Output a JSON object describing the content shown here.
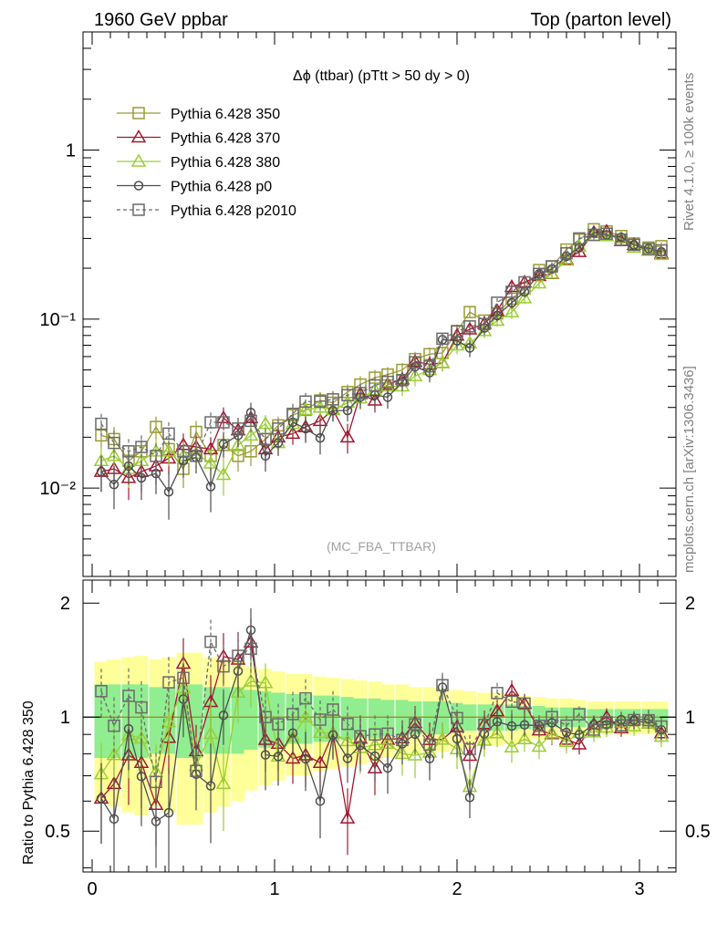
{
  "header": {
    "left_title": "1960 GeV ppbar",
    "right_title": "Top (parton level)"
  },
  "side_text": {
    "rivet": "Rivet 4.1.0, ≥ 100k events",
    "mcplots": "mcplots.cern.ch [arXiv:1306.3436]"
  },
  "chart_data": {
    "type": "line",
    "title": "Δϕ (ttbar) (pTtt > 50 dy > 0)",
    "analysis_label": "(MC_FBA_TTBAR)",
    "xlabel": "",
    "ylabel": "",
    "ratio_ylabel": "Ratio to Pythia 6.428 350",
    "xlim": [
      -0.05,
      3.2
    ],
    "ylim": [
      0.003,
      5
    ],
    "yscale": "log",
    "ratio_ylim": [
      0.39,
      2.3
    ],
    "x_ticks": [
      "0",
      "1",
      "2",
      "3"
    ],
    "y_ticks": [
      "1",
      "10⁻¹",
      "10⁻²"
    ],
    "ratio_y_ticks": [
      "2",
      "1",
      "0.5"
    ],
    "x": [
      0.05,
      0.12,
      0.2,
      0.27,
      0.35,
      0.42,
      0.5,
      0.57,
      0.65,
      0.72,
      0.8,
      0.87,
      0.95,
      1.02,
      1.1,
      1.17,
      1.25,
      1.32,
      1.4,
      1.47,
      1.55,
      1.62,
      1.7,
      1.77,
      1.85,
      1.92,
      2.0,
      2.07,
      2.15,
      2.22,
      2.3,
      2.37,
      2.45,
      2.52,
      2.6,
      2.67,
      2.75,
      2.82,
      2.9,
      2.97,
      3.05,
      3.12
    ],
    "series": [
      {
        "name": "Pythia 6.428 350",
        "color": "#9b9b34",
        "marker": "square",
        "dashed": false,
        "values": [
          0.0205,
          0.0195,
          0.0145,
          0.0165,
          0.023,
          0.017,
          0.013,
          0.0215,
          0.0155,
          0.018,
          0.0155,
          0.0165,
          0.0195,
          0.0235,
          0.027,
          0.029,
          0.033,
          0.032,
          0.037,
          0.041,
          0.045,
          0.047,
          0.05,
          0.058,
          0.062,
          0.063,
          0.085,
          0.11,
          0.098,
          0.108,
          0.132,
          0.152,
          0.195,
          0.205,
          0.258,
          0.295,
          0.34,
          0.33,
          0.31,
          0.28,
          0.265,
          0.27
        ],
        "errors": [
          0.0035,
          0.0035,
          0.003,
          0.003,
          0.0035,
          0.003,
          0.003,
          0.0035,
          0.003,
          0.003,
          0.003,
          0.003,
          0.003,
          0.003,
          0.004,
          0.004,
          0.004,
          0.004,
          0.004,
          0.005,
          0.005,
          0.005,
          0.005,
          0.006,
          0.006,
          0.006,
          0.008,
          0.008,
          0.008,
          0.008,
          0.01,
          0.01,
          0.012,
          0.012,
          0.015,
          0.015,
          0.018,
          0.018,
          0.015,
          0.015,
          0.015,
          0.015
        ]
      },
      {
        "name": "Pythia 6.428 370",
        "color": "#a01830",
        "marker": "triangle",
        "dashed": false,
        "values": [
          0.0125,
          0.013,
          0.0115,
          0.0125,
          0.0135,
          0.015,
          0.018,
          0.0175,
          0.017,
          0.026,
          0.022,
          0.026,
          0.017,
          0.02,
          0.021,
          0.023,
          0.025,
          0.029,
          0.02,
          0.036,
          0.033,
          0.041,
          0.044,
          0.056,
          0.054,
          0.055,
          0.08,
          0.087,
          0.094,
          0.112,
          0.155,
          0.165,
          0.18,
          0.185,
          0.225,
          0.25,
          0.325,
          0.33,
          0.29,
          0.275,
          0.255,
          0.245
        ],
        "errors": [
          0.003,
          0.003,
          0.003,
          0.003,
          0.003,
          0.003,
          0.003,
          0.003,
          0.003,
          0.004,
          0.004,
          0.004,
          0.003,
          0.003,
          0.003,
          0.004,
          0.004,
          0.004,
          0.004,
          0.005,
          0.005,
          0.005,
          0.005,
          0.006,
          0.006,
          0.006,
          0.008,
          0.008,
          0.008,
          0.008,
          0.01,
          0.01,
          0.012,
          0.012,
          0.015,
          0.015,
          0.018,
          0.018,
          0.015,
          0.015,
          0.015,
          0.015
        ]
      },
      {
        "name": "Pythia 6.428 380",
        "color": "#9acd32",
        "marker": "triangle",
        "dashed": false,
        "values": [
          0.0145,
          0.0155,
          0.013,
          0.0145,
          0.0165,
          0.0165,
          0.0155,
          0.016,
          0.014,
          0.012,
          0.018,
          0.0205,
          0.024,
          0.0185,
          0.024,
          0.029,
          0.03,
          0.029,
          0.032,
          0.034,
          0.038,
          0.04,
          0.04,
          0.046,
          0.05,
          0.055,
          0.07,
          0.072,
          0.085,
          0.098,
          0.11,
          0.133,
          0.163,
          0.186,
          0.222,
          0.268,
          0.31,
          0.31,
          0.3,
          0.265,
          0.255,
          0.24
        ],
        "errors": [
          0.003,
          0.003,
          0.003,
          0.003,
          0.003,
          0.003,
          0.003,
          0.003,
          0.003,
          0.003,
          0.003,
          0.003,
          0.003,
          0.003,
          0.003,
          0.004,
          0.004,
          0.004,
          0.004,
          0.005,
          0.005,
          0.005,
          0.005,
          0.006,
          0.006,
          0.006,
          0.008,
          0.008,
          0.008,
          0.008,
          0.01,
          0.01,
          0.012,
          0.012,
          0.015,
          0.015,
          0.018,
          0.018,
          0.015,
          0.015,
          0.015,
          0.015
        ]
      },
      {
        "name": "Pythia 6.428 p0",
        "color": "#4d4d4d",
        "marker": "circle",
        "dashed": false,
        "values": [
          0.0125,
          0.0105,
          0.0135,
          0.0115,
          0.0122,
          0.0095,
          0.0145,
          0.0152,
          0.0102,
          0.0182,
          0.0205,
          0.028,
          0.0155,
          0.0185,
          0.0245,
          0.0225,
          0.0198,
          0.0287,
          0.0288,
          0.0345,
          0.0355,
          0.0345,
          0.0425,
          0.0523,
          0.0482,
          0.0755,
          0.0745,
          0.0675,
          0.0885,
          0.105,
          0.125,
          0.145,
          0.185,
          0.198,
          0.235,
          0.265,
          0.325,
          0.315,
          0.305,
          0.275,
          0.262,
          0.25
        ],
        "errors": [
          0.003,
          0.003,
          0.003,
          0.003,
          0.003,
          0.003,
          0.003,
          0.003,
          0.003,
          0.003,
          0.003,
          0.004,
          0.003,
          0.003,
          0.003,
          0.004,
          0.004,
          0.004,
          0.004,
          0.005,
          0.005,
          0.005,
          0.005,
          0.006,
          0.006,
          0.006,
          0.008,
          0.008,
          0.008,
          0.008,
          0.01,
          0.01,
          0.012,
          0.012,
          0.015,
          0.015,
          0.018,
          0.018,
          0.015,
          0.015,
          0.015,
          0.015
        ]
      },
      {
        "name": "Pythia 6.428 p2010",
        "color": "#6a6a6a",
        "marker": "square",
        "dashed": true,
        "values": [
          0.024,
          0.0185,
          0.0165,
          0.0175,
          0.0155,
          0.021,
          0.0165,
          0.0155,
          0.0245,
          0.0245,
          0.0225,
          0.025,
          0.0195,
          0.0225,
          0.0275,
          0.0325,
          0.0325,
          0.0335,
          0.0355,
          0.0365,
          0.0405,
          0.0425,
          0.0435,
          0.0555,
          0.0525,
          0.0765,
          0.0845,
          0.0905,
          0.0935,
          0.125,
          0.145,
          0.165,
          0.185,
          0.205,
          0.245,
          0.3,
          0.315,
          0.32,
          0.295,
          0.275,
          0.26,
          0.255
        ],
        "errors": [
          0.0035,
          0.0035,
          0.003,
          0.003,
          0.003,
          0.0035,
          0.003,
          0.003,
          0.0035,
          0.0035,
          0.003,
          0.004,
          0.003,
          0.003,
          0.004,
          0.004,
          0.004,
          0.004,
          0.004,
          0.005,
          0.005,
          0.005,
          0.005,
          0.006,
          0.006,
          0.006,
          0.008,
          0.008,
          0.008,
          0.008,
          0.01,
          0.01,
          0.012,
          0.012,
          0.015,
          0.015,
          0.018,
          0.018,
          0.015,
          0.015,
          0.015,
          0.015
        ]
      }
    ],
    "ratio_band": {
      "reference": "Pythia 6.428 350",
      "inner_color": "#90ee90",
      "outer_color": "#ffff99",
      "inner_halfwidth": [
        0.22,
        0.22,
        0.22,
        0.22,
        0.2,
        0.2,
        0.22,
        0.22,
        0.2,
        0.2,
        0.2,
        0.18,
        0.17,
        0.16,
        0.15,
        0.15,
        0.14,
        0.14,
        0.13,
        0.12,
        0.12,
        0.11,
        0.11,
        0.1,
        0.1,
        0.1,
        0.09,
        0.08,
        0.08,
        0.08,
        0.08,
        0.07,
        0.07,
        0.06,
        0.06,
        0.06,
        0.05,
        0.05,
        0.05,
        0.05,
        0.05,
        0.05
      ],
      "outer_halfwidth": [
        0.4,
        0.42,
        0.44,
        0.45,
        0.42,
        0.44,
        0.48,
        0.48,
        0.44,
        0.42,
        0.4,
        0.36,
        0.34,
        0.32,
        0.3,
        0.3,
        0.28,
        0.27,
        0.26,
        0.25,
        0.24,
        0.22,
        0.22,
        0.2,
        0.2,
        0.19,
        0.18,
        0.17,
        0.16,
        0.16,
        0.15,
        0.14,
        0.13,
        0.12,
        0.12,
        0.11,
        0.1,
        0.1,
        0.1,
        0.1,
        0.1,
        0.1
      ]
    }
  }
}
